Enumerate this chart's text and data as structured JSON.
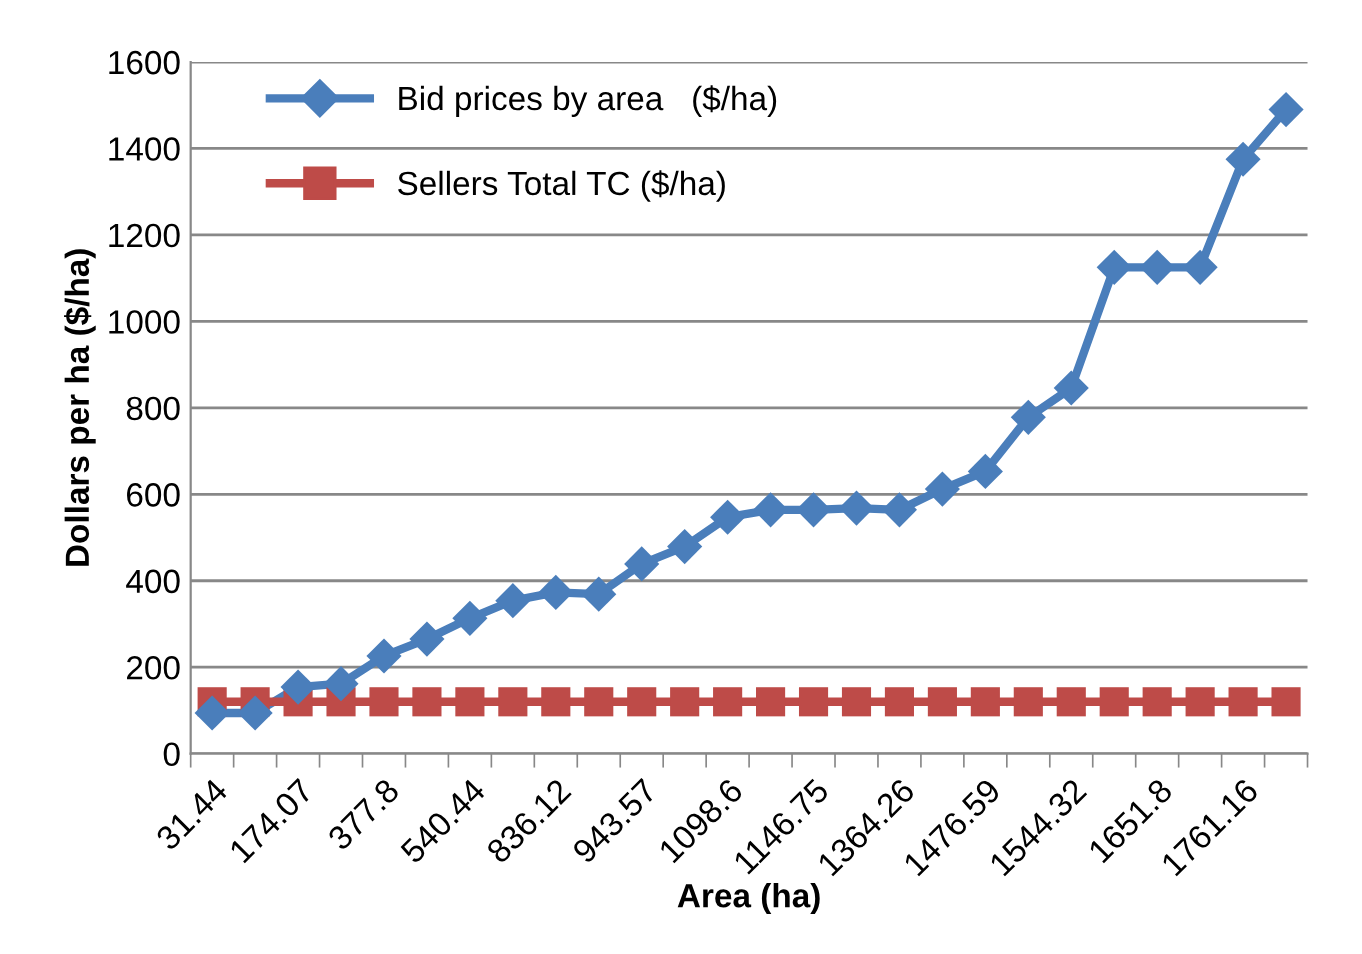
{
  "chart_data": {
    "type": "line",
    "xlabel": "Area (ha)",
    "ylabel": "Dollars per ha ($/ha)",
    "categories": [
      "31.44",
      null,
      "174.07",
      null,
      "377.8",
      null,
      "540.44",
      null,
      "836.12",
      null,
      "943.57",
      null,
      "1098.6",
      null,
      "1146.75",
      null,
      "1364.26",
      null,
      "1476.59",
      null,
      "1544.32",
      null,
      "1651.8",
      null,
      "1761.16",
      null
    ],
    "series": [
      {
        "name": "Bid prices by area   ($/ha)",
        "color": "#4a7ebb",
        "marker": "diamond",
        "values": [
          94,
          94,
          154,
          162,
          226,
          265,
          313,
          354,
          373,
          369,
          439,
          479,
          547,
          564,
          564,
          568,
          564,
          612,
          653,
          778,
          846,
          1125,
          1125,
          1125,
          1375,
          1490
        ]
      },
      {
        "name": "Sellers Total TC ($/ha)",
        "color": "#be4b48",
        "marker": "square",
        "values": [
          120,
          120,
          120,
          120,
          120,
          120,
          120,
          120,
          120,
          120,
          120,
          120,
          120,
          120,
          120,
          120,
          120,
          120,
          120,
          120,
          120,
          120,
          120,
          120,
          120,
          120
        ]
      }
    ],
    "ylim": [
      0,
      1600
    ],
    "yticks": [
      0,
      200,
      400,
      600,
      800,
      1000,
      1200,
      1400,
      1600
    ],
    "grid": "y",
    "legend": "top left"
  }
}
